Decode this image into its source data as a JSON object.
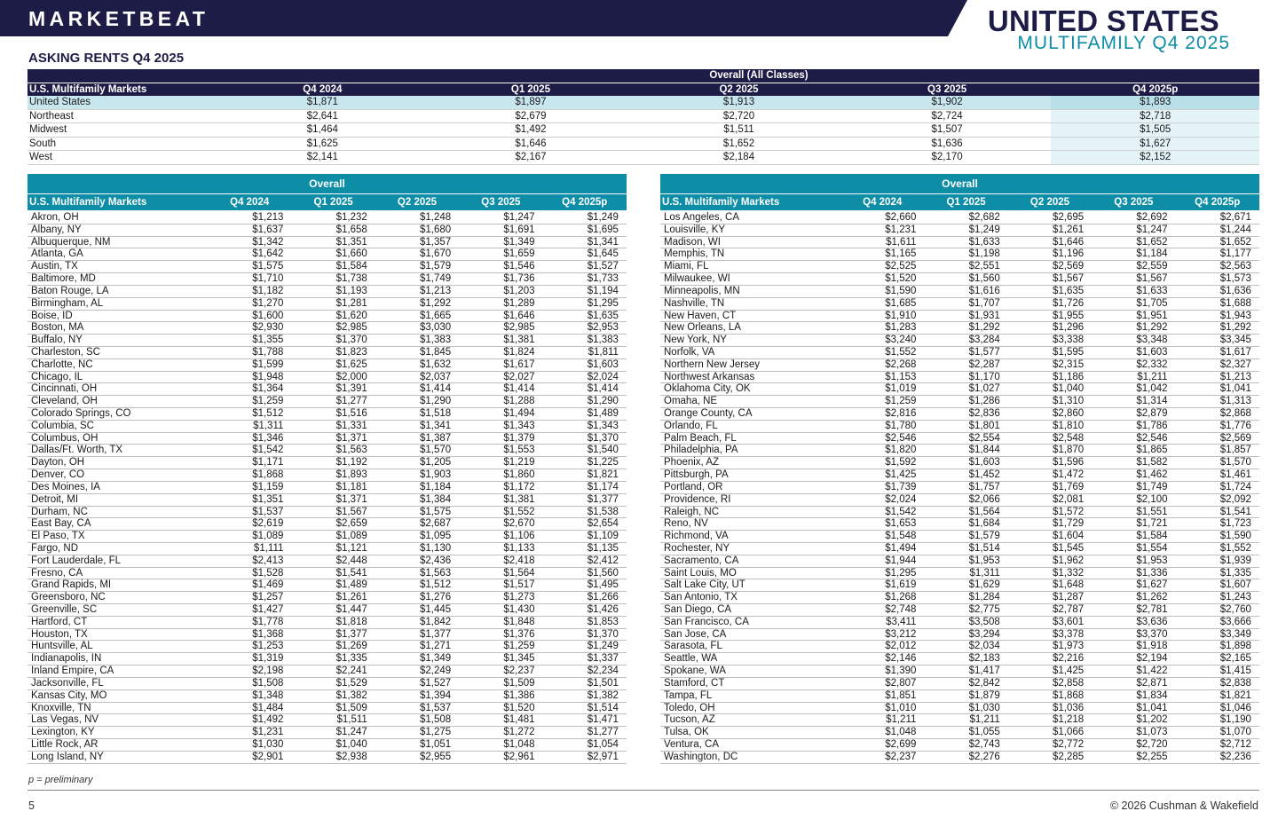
{
  "header": {
    "brand": "MARKETBEAT",
    "title": "UNITED STATES",
    "subtitle": "MULTIFAMILY Q4 2025",
    "section_title": "ASKING RENTS Q4 2025"
  },
  "summary": {
    "group_label": "Overall (All Classes)",
    "columns": [
      "U.S. Multifamily Markets",
      "Q4 2024",
      "Q1 2025",
      "Q2 2025",
      "Q3 2025",
      "Q4 2025p"
    ],
    "rows": [
      [
        "United States",
        "$1,871",
        "$1,897",
        "$1,913",
        "$1,902",
        "$1,893"
      ],
      [
        "Northeast",
        "$2,641",
        "$2,679",
        "$2,720",
        "$2,724",
        "$2,718"
      ],
      [
        "Midwest",
        "$1,464",
        "$1,492",
        "$1,511",
        "$1,507",
        "$1,505"
      ],
      [
        "South",
        "$1,625",
        "$1,646",
        "$1,652",
        "$1,636",
        "$1,627"
      ],
      [
        "West",
        "$2,141",
        "$2,167",
        "$2,184",
        "$2,170",
        "$2,152"
      ]
    ]
  },
  "left_table": {
    "group_label": "Overall",
    "columns": [
      "U.S. Multifamily Markets",
      "Q4 2024",
      "Q1 2025",
      "Q2 2025",
      "Q3 2025",
      "Q4 2025p"
    ],
    "rows": [
      [
        "Akron, OH",
        "$1,213",
        "$1,232",
        "$1,248",
        "$1,247",
        "$1,249"
      ],
      [
        "Albany, NY",
        "$1,637",
        "$1,658",
        "$1,680",
        "$1,691",
        "$1,695"
      ],
      [
        "Albuquerque, NM",
        "$1,342",
        "$1,351",
        "$1,357",
        "$1,349",
        "$1,341"
      ],
      [
        "Atlanta, GA",
        "$1,642",
        "$1,660",
        "$1,670",
        "$1,659",
        "$1,645"
      ],
      [
        "Austin, TX",
        "$1,575",
        "$1,584",
        "$1,579",
        "$1,546",
        "$1,527"
      ],
      [
        "Baltimore, MD",
        "$1,710",
        "$1,738",
        "$1,749",
        "$1,736",
        "$1,733"
      ],
      [
        "Baton Rouge, LA",
        "$1,182",
        "$1,193",
        "$1,213",
        "$1,203",
        "$1,194"
      ],
      [
        "Birmingham, AL",
        "$1,270",
        "$1,281",
        "$1,292",
        "$1,289",
        "$1,295"
      ],
      [
        "Boise, ID",
        "$1,600",
        "$1,620",
        "$1,665",
        "$1,646",
        "$1,635"
      ],
      [
        "Boston, MA",
        "$2,930",
        "$2,985",
        "$3,030",
        "$2,985",
        "$2,953"
      ],
      [
        "Buffalo, NY",
        "$1,355",
        "$1,370",
        "$1,383",
        "$1,381",
        "$1,383"
      ],
      [
        "Charleston, SC",
        "$1,788",
        "$1,823",
        "$1,845",
        "$1,824",
        "$1,811"
      ],
      [
        "Charlotte, NC",
        "$1,599",
        "$1,625",
        "$1,632",
        "$1,617",
        "$1,603"
      ],
      [
        "Chicago, IL",
        "$1,948",
        "$2,000",
        "$2,037",
        "$2,027",
        "$2,024"
      ],
      [
        "Cincinnati, OH",
        "$1,364",
        "$1,391",
        "$1,414",
        "$1,414",
        "$1,414"
      ],
      [
        "Cleveland, OH",
        "$1,259",
        "$1,277",
        "$1,290",
        "$1,288",
        "$1,290"
      ],
      [
        "Colorado Springs, CO",
        "$1,512",
        "$1,516",
        "$1,518",
        "$1,494",
        "$1,489"
      ],
      [
        "Columbia, SC",
        "$1,311",
        "$1,331",
        "$1,341",
        "$1,343",
        "$1,343"
      ],
      [
        "Columbus, OH",
        "$1,346",
        "$1,371",
        "$1,387",
        "$1,379",
        "$1,370"
      ],
      [
        "Dallas/Ft. Worth, TX",
        "$1,542",
        "$1,563",
        "$1,570",
        "$1,553",
        "$1,540"
      ],
      [
        "Dayton, OH",
        "$1,171",
        "$1,192",
        "$1,205",
        "$1,219",
        "$1,225"
      ],
      [
        "Denver, CO",
        "$1,868",
        "$1,893",
        "$1,903",
        "$1,860",
        "$1,821"
      ],
      [
        "Des Moines, IA",
        "$1,159",
        "$1,181",
        "$1,184",
        "$1,172",
        "$1,174"
      ],
      [
        "Detroit, MI",
        "$1,351",
        "$1,371",
        "$1,384",
        "$1,381",
        "$1,377"
      ],
      [
        "Durham, NC",
        "$1,537",
        "$1,567",
        "$1,575",
        "$1,552",
        "$1,538"
      ],
      [
        "East Bay, CA",
        "$2,619",
        "$2,659",
        "$2,687",
        "$2,670",
        "$2,654"
      ],
      [
        "El Paso, TX",
        "$1,089",
        "$1,089",
        "$1,095",
        "$1,106",
        "$1,109"
      ],
      [
        "Fargo, ND",
        "$1,111",
        "$1,121",
        "$1,130",
        "$1,133",
        "$1,135"
      ],
      [
        "Fort Lauderdale, FL",
        "$2,413",
        "$2,448",
        "$2,436",
        "$2,418",
        "$2,412"
      ],
      [
        "Fresno, CA",
        "$1,528",
        "$1,541",
        "$1,563",
        "$1,564",
        "$1,560"
      ],
      [
        "Grand Rapids, MI",
        "$1,469",
        "$1,489",
        "$1,512",
        "$1,517",
        "$1,495"
      ],
      [
        "Greensboro, NC",
        "$1,257",
        "$1,261",
        "$1,276",
        "$1,273",
        "$1,266"
      ],
      [
        "Greenville, SC",
        "$1,427",
        "$1,447",
        "$1,445",
        "$1,430",
        "$1,426"
      ],
      [
        "Hartford, CT",
        "$1,778",
        "$1,818",
        "$1,842",
        "$1,848",
        "$1,853"
      ],
      [
        "Houston, TX",
        "$1,368",
        "$1,377",
        "$1,377",
        "$1,376",
        "$1,370"
      ],
      [
        "Huntsville, AL",
        "$1,253",
        "$1,269",
        "$1,271",
        "$1,259",
        "$1,249"
      ],
      [
        "Indianapolis, IN",
        "$1,319",
        "$1,335",
        "$1,349",
        "$1,345",
        "$1,337"
      ],
      [
        "Inland Empire, CA",
        "$2,198",
        "$2,241",
        "$2,249",
        "$2,237",
        "$2,234"
      ],
      [
        "Jacksonville, FL",
        "$1,508",
        "$1,529",
        "$1,527",
        "$1,509",
        "$1,501"
      ],
      [
        "Kansas City, MO",
        "$1,348",
        "$1,382",
        "$1,394",
        "$1,386",
        "$1,382"
      ],
      [
        "Knoxville, TN",
        "$1,484",
        "$1,509",
        "$1,537",
        "$1,520",
        "$1,514"
      ],
      [
        "Las Vegas, NV",
        "$1,492",
        "$1,511",
        "$1,508",
        "$1,481",
        "$1,471"
      ],
      [
        "Lexington, KY",
        "$1,231",
        "$1,247",
        "$1,275",
        "$1,272",
        "$1,277"
      ],
      [
        "Little Rock, AR",
        "$1,030",
        "$1,040",
        "$1,051",
        "$1,048",
        "$1,054"
      ],
      [
        "Long Island, NY",
        "$2,901",
        "$2,938",
        "$2,955",
        "$2,961",
        "$2,971"
      ]
    ]
  },
  "right_table": {
    "group_label": "Overall",
    "columns": [
      "U.S. Multifamily Markets",
      "Q4 2024",
      "Q1 2025",
      "Q2 2025",
      "Q3 2025",
      "Q4 2025p"
    ],
    "rows": [
      [
        "Los Angeles, CA",
        "$2,660",
        "$2,682",
        "$2,695",
        "$2,692",
        "$2,671"
      ],
      [
        "Louisville, KY",
        "$1,231",
        "$1,249",
        "$1,261",
        "$1,247",
        "$1,244"
      ],
      [
        "Madison, WI",
        "$1,611",
        "$1,633",
        "$1,646",
        "$1,652",
        "$1,652"
      ],
      [
        "Memphis, TN",
        "$1,165",
        "$1,198",
        "$1,196",
        "$1,184",
        "$1,177"
      ],
      [
        "Miami, FL",
        "$2,525",
        "$2,551",
        "$2,569",
        "$2,559",
        "$2,563"
      ],
      [
        "Milwaukee, WI",
        "$1,520",
        "$1,560",
        "$1,567",
        "$1,567",
        "$1,573"
      ],
      [
        "Minneapolis, MN",
        "$1,590",
        "$1,616",
        "$1,635",
        "$1,633",
        "$1,636"
      ],
      [
        "Nashville, TN",
        "$1,685",
        "$1,707",
        "$1,726",
        "$1,705",
        "$1,688"
      ],
      [
        "New Haven, CT",
        "$1,910",
        "$1,931",
        "$1,955",
        "$1,951",
        "$1,943"
      ],
      [
        "New Orleans, LA",
        "$1,283",
        "$1,292",
        "$1,296",
        "$1,292",
        "$1,292"
      ],
      [
        "New York, NY",
        "$3,240",
        "$3,284",
        "$3,338",
        "$3,348",
        "$3,345"
      ],
      [
        "Norfolk, VA",
        "$1,552",
        "$1,577",
        "$1,595",
        "$1,603",
        "$1,617"
      ],
      [
        "Northern New Jersey",
        "$2,268",
        "$2,287",
        "$2,315",
        "$2,332",
        "$2,327"
      ],
      [
        "Northwest Arkansas",
        "$1,153",
        "$1,170",
        "$1,186",
        "$1,211",
        "$1,213"
      ],
      [
        "Oklahoma City, OK",
        "$1,019",
        "$1,027",
        "$1,040",
        "$1,042",
        "$1,041"
      ],
      [
        "Omaha, NE",
        "$1,259",
        "$1,286",
        "$1,310",
        "$1,314",
        "$1,313"
      ],
      [
        "Orange County, CA",
        "$2,816",
        "$2,836",
        "$2,860",
        "$2,879",
        "$2,868"
      ],
      [
        "Orlando, FL",
        "$1,780",
        "$1,801",
        "$1,810",
        "$1,786",
        "$1,776"
      ],
      [
        "Palm Beach, FL",
        "$2,546",
        "$2,554",
        "$2,548",
        "$2,546",
        "$2,569"
      ],
      [
        "Philadelphia, PA",
        "$1,820",
        "$1,844",
        "$1,870",
        "$1,865",
        "$1,857"
      ],
      [
        "Phoenix, AZ",
        "$1,592",
        "$1,603",
        "$1,596",
        "$1,582",
        "$1,570"
      ],
      [
        "Pittsburgh, PA",
        "$1,425",
        "$1,452",
        "$1,472",
        "$1,462",
        "$1,461"
      ],
      [
        "Portland, OR",
        "$1,739",
        "$1,757",
        "$1,769",
        "$1,749",
        "$1,724"
      ],
      [
        "Providence, RI",
        "$2,024",
        "$2,066",
        "$2,081",
        "$2,100",
        "$2,092"
      ],
      [
        "Raleigh, NC",
        "$1,542",
        "$1,564",
        "$1,572",
        "$1,551",
        "$1,541"
      ],
      [
        "Reno, NV",
        "$1,653",
        "$1,684",
        "$1,729",
        "$1,721",
        "$1,723"
      ],
      [
        "Richmond, VA",
        "$1,548",
        "$1,579",
        "$1,604",
        "$1,584",
        "$1,590"
      ],
      [
        "Rochester, NY",
        "$1,494",
        "$1,514",
        "$1,545",
        "$1,554",
        "$1,552"
      ],
      [
        "Sacramento, CA",
        "$1,944",
        "$1,953",
        "$1,962",
        "$1,953",
        "$1,939"
      ],
      [
        "Saint Louis, MO",
        "$1,295",
        "$1,311",
        "$1,332",
        "$1,336",
        "$1,335"
      ],
      [
        "Salt Lake City, UT",
        "$1,619",
        "$1,629",
        "$1,648",
        "$1,627",
        "$1,607"
      ],
      [
        "San Antonio, TX",
        "$1,268",
        "$1,284",
        "$1,287",
        "$1,262",
        "$1,243"
      ],
      [
        "San Diego, CA",
        "$2,748",
        "$2,775",
        "$2,787",
        "$2,781",
        "$2,760"
      ],
      [
        "San Francisco, CA",
        "$3,411",
        "$3,508",
        "$3,601",
        "$3,636",
        "$3,666"
      ],
      [
        "San Jose, CA",
        "$3,212",
        "$3,294",
        "$3,378",
        "$3,370",
        "$3,349"
      ],
      [
        "Sarasota, FL",
        "$2,012",
        "$2,034",
        "$1,973",
        "$1,918",
        "$1,898"
      ],
      [
        "Seattle, WA",
        "$2,146",
        "$2,183",
        "$2,216",
        "$2,194",
        "$2,165"
      ],
      [
        "Spokane, WA",
        "$1,390",
        "$1,417",
        "$1,425",
        "$1,422",
        "$1,415"
      ],
      [
        "Stamford, CT",
        "$2,807",
        "$2,842",
        "$2,858",
        "$2,871",
        "$2,838"
      ],
      [
        "Tampa, FL",
        "$1,851",
        "$1,879",
        "$1,868",
        "$1,834",
        "$1,821"
      ],
      [
        "Toledo, OH",
        "$1,010",
        "$1,030",
        "$1,036",
        "$1,041",
        "$1,046"
      ],
      [
        "Tucson, AZ",
        "$1,211",
        "$1,211",
        "$1,218",
        "$1,202",
        "$1,190"
      ],
      [
        "Tulsa, OK",
        "$1,048",
        "$1,055",
        "$1,066",
        "$1,073",
        "$1,070"
      ],
      [
        "Ventura, CA",
        "$2,699",
        "$2,743",
        "$2,772",
        "$2,720",
        "$2,712"
      ],
      [
        "Washington, DC",
        "$2,237",
        "$2,276",
        "$2,285",
        "$2,255",
        "$2,236"
      ]
    ]
  },
  "footer": {
    "footnote": "p = preliminary",
    "page_number": "5",
    "copyright": "© 2026 Cushman & Wakefield"
  },
  "colors": {
    "navy": "#1c1c46",
    "teal": "#0e8ea6",
    "highlight": "#c8e6ee"
  }
}
